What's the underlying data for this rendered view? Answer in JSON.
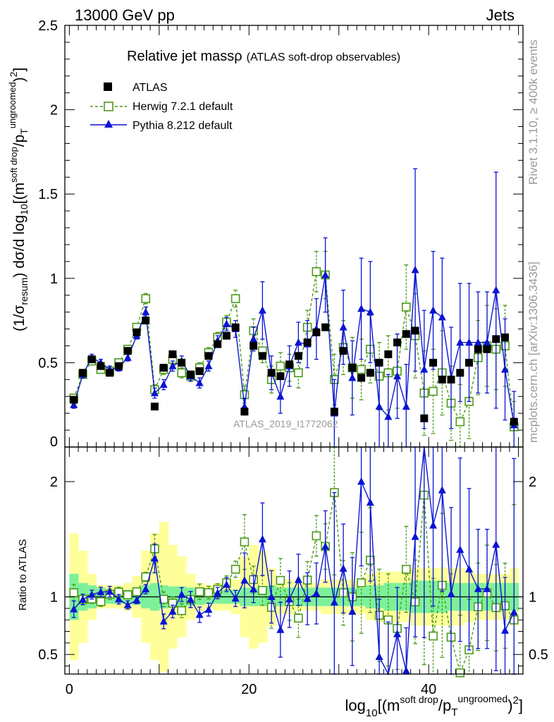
{
  "header": {
    "left": "13000 GeV pp",
    "right": "Jets"
  },
  "side": {
    "rivet": "Rivet 3.1.10, ≥ 400k events",
    "mcplots": "mcplots.cern.ch [arXiv:1306.3436]"
  },
  "colors": {
    "data": "#000000",
    "herwig": "#4c9a1a",
    "pythia": "#0a14d2",
    "band_inner": "#7ef09a",
    "band_outer": "#ffff9a"
  },
  "chart_data": {
    "type": "scatter",
    "title": "Relative jet massρ",
    "subtitle": "(ATLAS soft-drop observables)",
    "watermark": "ATLAS_2019_I1772062",
    "ylabel_main": {
      "a": "(1/σ",
      "b": "resum",
      "c": ") dσ/d log",
      "d": "10",
      "e": "[(m",
      "f": "soft drop",
      "g": "/p",
      "h": "T",
      "i": "ungroomed",
      "j": ")",
      "k": "2",
      "l": "]"
    },
    "ylabel_ratio": "Ratio to ATLAS",
    "xlabel": {
      "a": "log",
      "b": "10",
      "c": "[(m",
      "d": "soft drop",
      "e": "/p",
      "f": "T",
      "g": "ungroomed",
      "h": ")",
      "i": "2",
      "j": "]"
    },
    "xlim": [
      -0.5,
      50.5
    ],
    "ylim_main": [
      0,
      2.5
    ],
    "ylim_ratio": [
      0.33,
      2.3
    ],
    "x_ticks": [
      "0",
      "20",
      "40"
    ],
    "y_ticks_main": [
      "0",
      "0.5",
      "1",
      "1.5",
      "2",
      "2.5"
    ],
    "y_ticks_ratio": [
      "0.5",
      "1",
      "2"
    ],
    "legend": [
      {
        "name": "ATLAS",
        "marker": "square-filled"
      },
      {
        "name": "Herwig 7.2.1 default",
        "marker": "square-open-dashed"
      },
      {
        "name": "Pythia 8.212 default",
        "marker": "triangle-solid"
      }
    ],
    "x": [
      0.5,
      1.5,
      2.5,
      3.5,
      4.5,
      5.5,
      6.5,
      7.5,
      8.5,
      9.5,
      10.5,
      11.5,
      12.5,
      13.5,
      14.5,
      15.5,
      16.5,
      17.5,
      18.5,
      19.5,
      20.5,
      21.5,
      22.5,
      23.5,
      24.5,
      25.5,
      26.5,
      27.5,
      28.5,
      29.5,
      30.5,
      31.5,
      32.5,
      33.5,
      34.5,
      35.5,
      36.5,
      37.5,
      38.5,
      39.5,
      40.5,
      41.5,
      42.5,
      43.5,
      44.5,
      45.5,
      46.5,
      47.5,
      48.5,
      49.5
    ],
    "series": [
      {
        "name": "ATLAS",
        "values": [
          0.28,
          0.44,
          0.52,
          0.48,
          0.44,
          0.48,
          0.57,
          0.68,
          0.75,
          0.24,
          0.47,
          0.55,
          0.5,
          0.43,
          0.45,
          0.54,
          0.61,
          0.66,
          0.71,
          0.21,
          0.6,
          0.54,
          0.44,
          0.42,
          0.49,
          0.54,
          0.62,
          0.68,
          0.71,
          0.21,
          0.57,
          0.47,
          0.41,
          0.44,
          0.5,
          0.55,
          0.62,
          0.67,
          0.69,
          0.17,
          0.5,
          0.4,
          0.4,
          0.44,
          0.5,
          0.58,
          0.58,
          0.64,
          0.65,
          0.15
        ]
      },
      {
        "name": "Herwig 7.2.1 default",
        "values": [
          0.29,
          0.43,
          0.51,
          0.46,
          0.45,
          0.5,
          0.58,
          0.71,
          0.88,
          0.34,
          0.46,
          0.52,
          0.44,
          0.42,
          0.47,
          0.56,
          0.65,
          0.74,
          0.88,
          0.31,
          0.69,
          0.57,
          0.4,
          0.48,
          0.47,
          0.44,
          0.71,
          1.04,
          1.02,
          0.4,
          0.59,
          0.47,
          0.46,
          0.58,
          0.42,
          0.44,
          0.45,
          0.83,
          0.66,
          0.32,
          0.33,
          0.44,
          0.26,
          0.15,
          0.27,
          0.53,
          0.6,
          0.58,
          0.6,
          0.12
        ],
        "errors": [
          0.02,
          0.02,
          0.02,
          0.02,
          0.02,
          0.02,
          0.02,
          0.02,
          0.03,
          0.03,
          0.03,
          0.03,
          0.03,
          0.03,
          0.03,
          0.03,
          0.03,
          0.04,
          0.05,
          0.05,
          0.07,
          0.07,
          0.08,
          0.08,
          0.08,
          0.09,
          0.1,
          0.12,
          0.14,
          0.15,
          0.16,
          0.18,
          0.18,
          0.2,
          0.2,
          0.22,
          0.22,
          0.25,
          0.25,
          0.25,
          0.25,
          0.25,
          0.22,
          0.22,
          0.22,
          0.22,
          0.24,
          0.24,
          0.24,
          0.15
        ]
      },
      {
        "name": "Pythia 8.212 default",
        "values": [
          0.25,
          0.43,
          0.53,
          0.5,
          0.46,
          0.47,
          0.53,
          0.66,
          0.8,
          0.32,
          0.37,
          0.48,
          0.51,
          0.42,
          0.38,
          0.48,
          0.63,
          0.73,
          0.7,
          0.24,
          0.64,
          0.81,
          0.44,
          0.3,
          0.48,
          0.62,
          0.61,
          0.7,
          1.02,
          0.2,
          0.71,
          0.41,
          0.82,
          0.8,
          0.24,
          0.18,
          0.42,
          0.24,
          1.05,
          0.46,
          0.81,
          0.77,
          0.41,
          0.62,
          0.62,
          0.62,
          0.62,
          0.93,
          0.46,
          0.13
        ],
        "errors": [
          0.02,
          0.02,
          0.02,
          0.02,
          0.02,
          0.02,
          0.02,
          0.02,
          0.03,
          0.03,
          0.03,
          0.03,
          0.03,
          0.03,
          0.03,
          0.03,
          0.03,
          0.04,
          0.05,
          0.05,
          0.07,
          0.17,
          0.1,
          0.1,
          0.12,
          0.12,
          0.14,
          0.18,
          0.22,
          0.2,
          0.22,
          0.22,
          0.3,
          0.3,
          0.25,
          0.25,
          0.25,
          0.25,
          0.6,
          0.35,
          0.35,
          0.35,
          0.3,
          0.35,
          0.35,
          0.3,
          0.3,
          0.7,
          0.3,
          0.2
        ]
      }
    ],
    "band": {
      "inner_rel": [
        0.2,
        0.12,
        0.1,
        0.08,
        0.06,
        0.06,
        0.06,
        0.07,
        0.1,
        0.12,
        0.1,
        0.09,
        0.09,
        0.08,
        0.07,
        0.06,
        0.06,
        0.06,
        0.06,
        0.08,
        0.08,
        0.08,
        0.1,
        0.08,
        0.08,
        0.08,
        0.08,
        0.08,
        0.08,
        0.08,
        0.08,
        0.08,
        0.08,
        0.1,
        0.1,
        0.12,
        0.12,
        0.12,
        0.14,
        0.14,
        0.14,
        0.14,
        0.12,
        0.12,
        0.12,
        0.12,
        0.12,
        0.12,
        0.12,
        0.12
      ],
      "outer_rel": [
        0.55,
        0.4,
        0.2,
        0.1,
        0.1,
        0.1,
        0.12,
        0.18,
        0.4,
        0.55,
        0.65,
        0.45,
        0.35,
        0.2,
        0.12,
        0.1,
        0.12,
        0.12,
        0.15,
        0.35,
        0.45,
        0.4,
        0.25,
        0.15,
        0.15,
        0.12,
        0.12,
        0.12,
        0.15,
        0.15,
        0.15,
        0.15,
        0.15,
        0.2,
        0.22,
        0.22,
        0.22,
        0.22,
        0.25,
        0.25,
        0.25,
        0.25,
        0.25,
        0.25,
        0.22,
        0.2,
        0.2,
        0.2,
        0.2,
        0.25
      ]
    }
  }
}
